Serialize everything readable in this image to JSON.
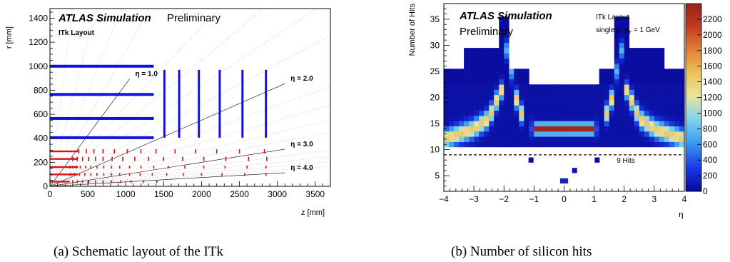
{
  "chart_data": [
    {
      "type": "scatter",
      "title": "ATLAS Simulation",
      "subtitle": "Preliminary",
      "label": "ITk Layout",
      "xlabel": "z [mm]",
      "ylabel": "r [mm]",
      "xlim": [
        0,
        3700
      ],
      "ylim": [
        0,
        1480
      ],
      "xticks": [
        0,
        500,
        1000,
        1500,
        2000,
        2500,
        3000,
        3500
      ],
      "yticks": [
        0,
        200,
        400,
        600,
        800,
        1000,
        1200,
        1400
      ],
      "caption": "(a) Schematic layout of the ITk",
      "strip_barrel": {
        "color": "#1010e0",
        "layers": [
          {
            "r": 405,
            "z_max": 1370
          },
          {
            "r": 565,
            "z_max": 1370
          },
          {
            "r": 765,
            "z_max": 1370
          },
          {
            "r": 1000,
            "z_max": 1370
          }
        ]
      },
      "strip_endcap": {
        "color": "#1010e0",
        "disks": [
          {
            "z": 1510,
            "r_min": 405,
            "r_max": 970
          },
          {
            "z": 1705,
            "r_min": 405,
            "r_max": 970
          },
          {
            "z": 1965,
            "r_min": 405,
            "r_max": 970
          },
          {
            "z": 2240,
            "r_min": 405,
            "r_max": 970
          },
          {
            "z": 2540,
            "r_min": 405,
            "r_max": 970
          },
          {
            "z": 2850,
            "r_min": 405,
            "r_max": 970
          }
        ]
      },
      "pixel_barrel": {
        "color": "#e01010",
        "layers": [
          {
            "r": 39,
            "z_max": 260
          },
          {
            "r": 99,
            "z_max": 370
          },
          {
            "r": 160,
            "z_max": 370
          },
          {
            "r": 228,
            "z_max": 370
          },
          {
            "r": 291,
            "z_max": 370
          }
        ]
      },
      "pixel_endcap": {
        "color": "#e01010",
        "modules": [
          {
            "z": 380,
            "r": 291
          },
          {
            "z": 480,
            "r": 291
          },
          {
            "z": 580,
            "r": 291
          },
          {
            "z": 700,
            "r": 291
          },
          {
            "z": 850,
            "r": 291
          },
          {
            "z": 1020,
            "r": 291
          },
          {
            "z": 1200,
            "r": 291
          },
          {
            "z": 1400,
            "r": 291
          },
          {
            "z": 1650,
            "r": 291
          },
          {
            "z": 1920,
            "r": 291
          },
          {
            "z": 2200,
            "r": 291
          },
          {
            "z": 2500,
            "r": 291
          },
          {
            "z": 2830,
            "r": 291
          },
          {
            "z": 300,
            "r": 228
          },
          {
            "z": 360,
            "r": 228
          },
          {
            "z": 430,
            "r": 228
          },
          {
            "z": 510,
            "r": 228
          },
          {
            "z": 600,
            "r": 228
          },
          {
            "z": 700,
            "r": 228
          },
          {
            "z": 820,
            "r": 228
          },
          {
            "z": 960,
            "r": 228
          },
          {
            "z": 1120,
            "r": 228
          },
          {
            "z": 1300,
            "r": 228
          },
          {
            "z": 1500,
            "r": 228
          },
          {
            "z": 1750,
            "r": 228
          },
          {
            "z": 2030,
            "r": 228
          },
          {
            "z": 2320,
            "r": 228
          },
          {
            "z": 2620,
            "r": 228
          },
          {
            "z": 2860,
            "r": 228
          },
          {
            "z": 260,
            "r": 160
          },
          {
            "z": 300,
            "r": 160
          },
          {
            "z": 350,
            "r": 160
          },
          {
            "z": 400,
            "r": 160
          },
          {
            "z": 470,
            "r": 160
          },
          {
            "z": 540,
            "r": 160
          },
          {
            "z": 620,
            "r": 160
          },
          {
            "z": 710,
            "r": 160
          },
          {
            "z": 810,
            "r": 160
          },
          {
            "z": 920,
            "r": 160
          },
          {
            "z": 1050,
            "r": 160
          },
          {
            "z": 1200,
            "r": 160
          },
          {
            "z": 1370,
            "r": 160
          },
          {
            "z": 1560,
            "r": 160
          },
          {
            "z": 1780,
            "r": 160
          },
          {
            "z": 2030,
            "r": 160
          },
          {
            "z": 2310,
            "r": 160
          },
          {
            "z": 2600,
            "r": 160
          },
          {
            "z": 2850,
            "r": 160
          },
          {
            "z": 270,
            "r": 99
          },
          {
            "z": 330,
            "r": 99
          },
          {
            "z": 390,
            "r": 99
          },
          {
            "z": 460,
            "r": 99
          },
          {
            "z": 540,
            "r": 99
          },
          {
            "z": 620,
            "r": 99
          },
          {
            "z": 710,
            "r": 99
          },
          {
            "z": 810,
            "r": 99
          },
          {
            "z": 920,
            "r": 99
          },
          {
            "z": 1050,
            "r": 99
          },
          {
            "z": 1190,
            "r": 99
          },
          {
            "z": 1350,
            "r": 99
          },
          {
            "z": 1540,
            "r": 99
          },
          {
            "z": 1760,
            "r": 99
          },
          {
            "z": 2000,
            "r": 99
          },
          {
            "z": 2270,
            "r": 99
          },
          {
            "z": 2570,
            "r": 99
          },
          {
            "z": 2850,
            "r": 99
          },
          {
            "z": 300,
            "r": 39
          },
          {
            "z": 360,
            "r": 39
          },
          {
            "z": 430,
            "r": 39
          },
          {
            "z": 510,
            "r": 39
          },
          {
            "z": 600,
            "r": 39
          },
          {
            "z": 700,
            "r": 39
          },
          {
            "z": 810,
            "r": 39
          },
          {
            "z": 930,
            "r": 39
          },
          {
            "z": 1070,
            "r": 39
          },
          {
            "z": 1230,
            "r": 39
          },
          {
            "z": 1410,
            "r": 39
          }
        ]
      },
      "eta_lines": [
        {
          "label": "η = 1.0",
          "eta": 1.0
        },
        {
          "label": "η = 2.0",
          "eta": 2.0
        },
        {
          "label": "η = 3.0",
          "eta": 3.0
        },
        {
          "label": "η = 4.0",
          "eta": 4.0
        }
      ],
      "eta_grid_dotted": [
        0.2,
        0.4,
        0.6,
        0.8,
        1.2,
        1.4,
        1.6,
        1.8,
        2.2,
        2.4,
        2.6,
        2.8,
        3.2,
        3.4,
        3.6,
        3.8
      ],
      "colors": {
        "axis": "#000000",
        "eta_line": "#000000",
        "eta_grid": "#c8c8c8"
      }
    },
    {
      "type": "heatmap",
      "title": "ATLAS Simulation",
      "subtitle": "Preliminary",
      "label": "ITk Layout",
      "label2": "single μ, p",
      "label2_sub": "T",
      "label2_tail": " = 1 GeV",
      "xlabel": "η",
      "ylabel": "Number of Hits",
      "xlim": [
        -4,
        4
      ],
      "ylim": [
        2,
        38
      ],
      "xticks": [
        -4,
        -3,
        -2,
        -1,
        0,
        1,
        2,
        3,
        4
      ],
      "yticks": [
        5,
        10,
        15,
        20,
        25,
        30,
        35
      ],
      "zlim": [
        0,
        2400
      ],
      "zticks": [
        0,
        200,
        400,
        600,
        800,
        1000,
        1200,
        1400,
        1600,
        1800,
        2000,
        2200
      ],
      "reference_line": {
        "y": 9,
        "label": "9 Hits"
      },
      "caption": "(b) Number of silicon hits",
      "colormap": [
        "#0a0a9c",
        "#1a3ce8",
        "#3a9cf0",
        "#7fd3ea",
        "#e9e4a0",
        "#eec15a",
        "#e07f36",
        "#c2381f",
        "#962418"
      ],
      "x_bins": 48,
      "regions": [
        {
          "x_lo": -4.0,
          "x_hi": -1.2,
          "y_lo": 11,
          "y_hi": 25
        },
        {
          "x_lo": -3.3,
          "x_hi": -2.2,
          "y_lo": 12,
          "y_hi": 29
        },
        {
          "x_lo": -2.2,
          "x_hi": -1.75,
          "y_lo": 13,
          "y_hi": 35
        },
        {
          "x_lo": -1.75,
          "x_hi": -1.2,
          "y_lo": 13,
          "y_hi": 25
        },
        {
          "x_lo": -1.2,
          "x_hi": 1.2,
          "y_lo": 11,
          "y_hi": 22
        },
        {
          "x_lo": 1.2,
          "x_hi": 1.75,
          "y_lo": 13,
          "y_hi": 25
        },
        {
          "x_lo": 1.75,
          "x_hi": 2.2,
          "y_lo": 13,
          "y_hi": 35
        },
        {
          "x_lo": 2.2,
          "x_hi": 3.3,
          "y_lo": 12,
          "y_hi": 29
        },
        {
          "x_lo": 1.2,
          "x_hi": 4.0,
          "y_lo": 11,
          "y_hi": 25
        }
      ],
      "ridges": [
        {
          "name": "barrel band",
          "x_lo": -1.0,
          "x_hi": 1.0,
          "y": 14,
          "peak": 2300
        },
        {
          "name": "left crossing",
          "points": [
            [
              -4.0,
              12
            ],
            [
              -3.0,
              14
            ],
            [
              -2.5,
              16
            ],
            [
              -2.05,
              22
            ],
            [
              -1.9,
              30
            ],
            [
              -1.6,
              20
            ],
            [
              -1.3,
              15
            ]
          ],
          "peak": 1400
        },
        {
          "name": "right crossing",
          "points": [
            [
              4.0,
              12
            ],
            [
              3.0,
              14
            ],
            [
              2.5,
              16
            ],
            [
              2.05,
              22
            ],
            [
              1.9,
              30
            ],
            [
              1.6,
              20
            ],
            [
              1.3,
              15
            ]
          ],
          "peak": 1400
        }
      ],
      "outliers": [
        {
          "x": -1.1,
          "y": 8,
          "value": 20
        },
        {
          "x": 1.1,
          "y": 8,
          "value": 20
        },
        {
          "x": -0.05,
          "y": 4,
          "value": 150
        },
        {
          "x": 0.05,
          "y": 4,
          "value": 150
        },
        {
          "x": 0.35,
          "y": 6,
          "value": 60
        }
      ]
    }
  ]
}
